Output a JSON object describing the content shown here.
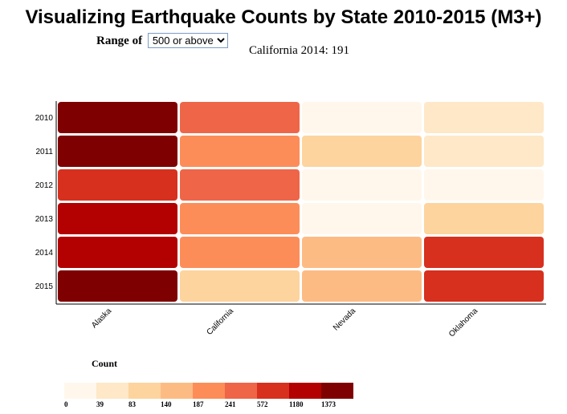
{
  "title": "Visualizing Earthquake Counts by State 2010-2015 (M3+)",
  "controls": {
    "range_label": "Range of",
    "range_selected": "500 or above"
  },
  "hover_readout": "California 2014: 191",
  "chart_data": {
    "type": "heatmap",
    "title": "Visualizing Earthquake Counts by State 2010-2015 (M3+)",
    "x_categories": [
      "Alaska",
      "California",
      "Nevada",
      "Oklahoma"
    ],
    "y_categories": [
      "2010",
      "2011",
      "2012",
      "2013",
      "2014",
      "2015"
    ],
    "values": [
      [
        1500,
        300,
        5,
        50
      ],
      [
        1450,
        240,
        130,
        40
      ],
      [
        900,
        300,
        5,
        10
      ],
      [
        1300,
        240,
        5,
        120
      ],
      [
        1250,
        191,
        170,
        700
      ],
      [
        1400,
        110,
        170,
        800
      ]
    ],
    "color_scale": {
      "title": "Count",
      "thresholds": [
        "0",
        "39",
        "83",
        "140",
        "187",
        "241",
        "572",
        "1180",
        "1373"
      ],
      "colors": [
        "#fff7ec",
        "#fee8c8",
        "#fdd49e",
        "#fdbb84",
        "#fc8d59",
        "#ef6548",
        "#d7301f",
        "#b30000",
        "#7f0000"
      ]
    }
  }
}
